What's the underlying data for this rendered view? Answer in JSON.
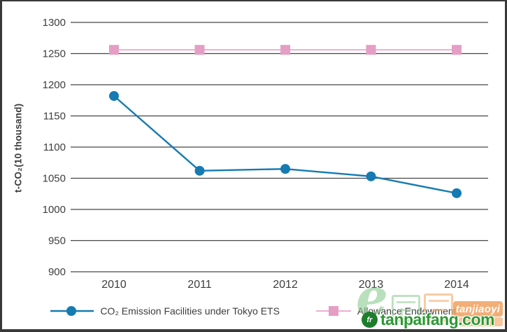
{
  "frame": {
    "border_color": "#383838",
    "background": "#ffffff"
  },
  "colors": {
    "frame": "#383838",
    "text": "#3d3d3d",
    "grid": "#464646",
    "blue": "#157bb2",
    "pink": "#e59ec4",
    "pink_line": "#ecaed0",
    "wm_green_dark": "#2c9933",
    "wm_orange": "rgba(240,160,95,0.85)",
    "wm_orange_light": "rgba(245,175,115,0.7)",
    "wm_logo_green": "#1e7d2c"
  },
  "chart_data": {
    "type": "line",
    "title": "",
    "categories": [
      "2010",
      "2011",
      "2012",
      "2013",
      "2014"
    ],
    "series": [
      {
        "name": "CO₂ Emission Facilities under Tokyo ETS",
        "values": [
          1182,
          1062,
          1065,
          1053,
          1026
        ],
        "color_key": "blue",
        "line_color_key": "blue",
        "marker": "circle"
      },
      {
        "name": "Allowance Endowment",
        "values": [
          1256,
          1256,
          1256,
          1256,
          1256
        ],
        "color_key": "pink",
        "line_color_key": "pink_line",
        "marker": "square"
      }
    ],
    "xlabel": "",
    "ylabel": "t-CO₂(10 thousand)",
    "ylim": [
      900,
      1300
    ],
    "ytick_step": 50,
    "grid": "horizontal-only",
    "legend_position": "bottom-center"
  },
  "watermark": {
    "script_letter": "e",
    "badge_text": "tanjiaoyi",
    "site_text": "tanpaifang.com",
    "logo_glyph": "fr"
  }
}
